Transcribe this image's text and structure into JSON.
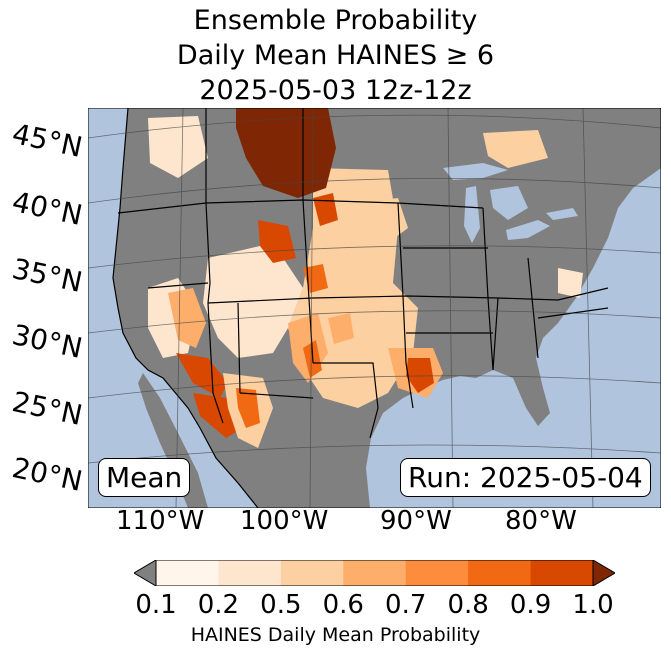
{
  "title": {
    "line1": "Ensemble Probability",
    "line2": "Daily Mean HAINES ≥ 6",
    "line3": "2025-05-03 12z-12z"
  },
  "map": {
    "latitude_labels": [
      "45°N",
      "40°N",
      "35°N",
      "30°N",
      "25°N",
      "20°N"
    ],
    "longitude_labels": [
      "110°W",
      "100°W",
      "90°W",
      "80°W"
    ],
    "left_box": "Mean",
    "right_box": "Run: 2025-05-04",
    "colors": {
      "ocean": "#b0c4de",
      "land_masked": "#808080",
      "border": "#000000"
    }
  },
  "colorbar": {
    "label": "HAINES Daily Mean Probability",
    "ticks": [
      "0.1",
      "0.2",
      "0.5",
      "0.6",
      "0.7",
      "0.8",
      "0.9",
      "1.0"
    ],
    "under_color": "#808080",
    "over_color": "#7f2704",
    "colors": [
      "#fff5eb",
      "#fee6ce",
      "#fdd0a2",
      "#fdae6b",
      "#fd8d3c",
      "#f16913",
      "#d94801"
    ]
  }
}
